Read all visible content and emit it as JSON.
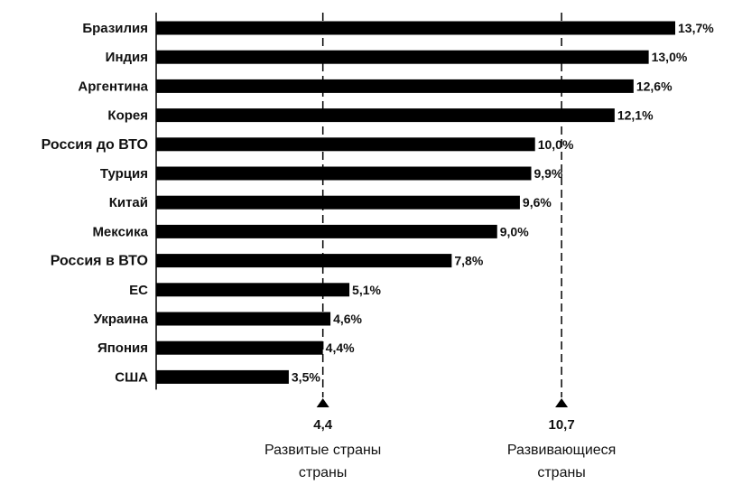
{
  "chart_data": {
    "type": "bar",
    "orientation": "horizontal",
    "categories": [
      "Бразилия",
      "Индия",
      "Аргентина",
      "Корея",
      "Россия до ВТО",
      "Турция",
      "Китай",
      "Мексика",
      "Россия в ВТО",
      "ЕС",
      "Украина",
      "Япония",
      "США"
    ],
    "values": [
      13.7,
      13.0,
      12.6,
      12.1,
      10.0,
      9.9,
      9.6,
      9.0,
      7.8,
      5.1,
      4.6,
      4.4,
      3.5
    ],
    "value_labels": [
      "13,7%",
      "13,0%",
      "12,6%",
      "12,1%",
      "10,0%",
      "9,9%",
      "9,6%",
      "9,0%",
      "7,8%",
      "5,1%",
      "4,6%",
      "4,4%",
      "3,5%"
    ],
    "emphasized_categories": [
      "Россия до ВТО",
      "Россия в ВТО"
    ],
    "xlim": [
      0,
      13.7
    ],
    "reference_lines": [
      {
        "value": 4.4,
        "value_label": "4,4",
        "caption_lines": [
          "Развитые страны",
          "страны"
        ],
        "style": "dashed"
      },
      {
        "value": 10.7,
        "value_label": "10,7",
        "caption_lines": [
          "Развивающиеся",
          "страны"
        ],
        "style": "dashed"
      }
    ],
    "colors": {
      "bar": "#000000",
      "text": "#111111",
      "axis": "#000000",
      "reference": "#000000"
    },
    "grid": false,
    "legend": "none",
    "title": "",
    "xlabel": "",
    "ylabel": ""
  }
}
